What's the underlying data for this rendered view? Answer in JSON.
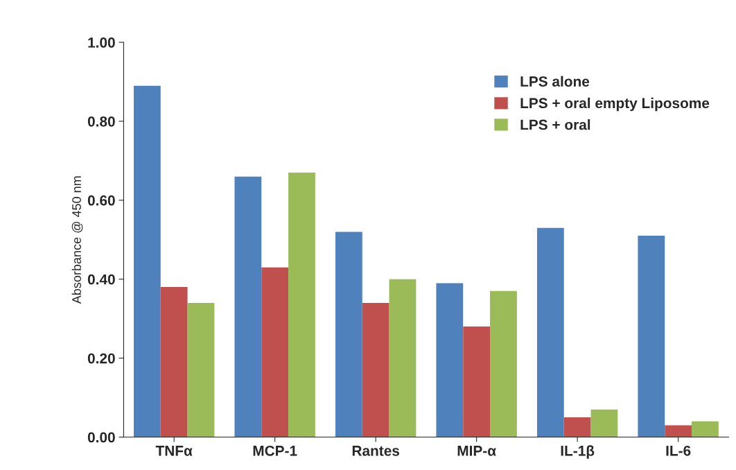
{
  "chart_data": {
    "type": "bar",
    "ylabel": "Absorbance @ 450 nm",
    "categories": [
      "TNFα",
      "MCP-1",
      "Rantes",
      "MIP-α",
      "IL-1β",
      "IL-6"
    ],
    "series": [
      {
        "name": "LPS alone",
        "color": "#4f81bd",
        "values": [
          0.89,
          0.66,
          0.52,
          0.39,
          0.53,
          0.51
        ]
      },
      {
        "name": "LPS + oral empty Liposome",
        "color": "#c0504d",
        "values": [
          0.38,
          0.43,
          0.34,
          0.28,
          0.05,
          0.03
        ]
      },
      {
        "name": "LPS + oral",
        "color": "#9bbb59",
        "values": [
          0.34,
          0.67,
          0.4,
          0.37,
          0.07,
          0.04
        ]
      }
    ],
    "ylim": [
      0,
      1.0
    ],
    "yticks": [
      {
        "value": 0,
        "label": "0.00"
      },
      {
        "value": 0.2,
        "label": "0.20"
      },
      {
        "value": 0.4,
        "label": "0.40"
      },
      {
        "value": 0.6,
        "label": "0.60"
      },
      {
        "value": 0.8,
        "label": "0.80"
      },
      {
        "value": 1.0,
        "label": "1.00"
      }
    ],
    "grid": false,
    "legend": "top right"
  }
}
